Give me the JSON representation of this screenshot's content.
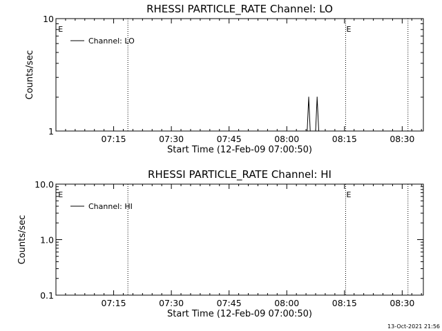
{
  "timestamp": "13-Oct-2021 21:56",
  "chart_data": [
    {
      "type": "line",
      "title": "RHESSI PARTICLE_RATE Channel: LO",
      "xlabel": "Start Time (12-Feb-09 07:00:50)",
      "ylabel": "Counts/sec",
      "y_scale": "log",
      "ylim": [
        1,
        10
      ],
      "y_ticks": [
        {
          "v": 1,
          "label": "1"
        },
        {
          "v": 10,
          "label": "10"
        }
      ],
      "xlim_minutes": [
        0,
        95.5
      ],
      "x_ticks": [
        {
          "m": 15,
          "label": "07:15"
        },
        {
          "m": 30,
          "label": "07:30"
        },
        {
          "m": 45,
          "label": "07:45"
        },
        {
          "m": 60,
          "label": "08:00"
        },
        {
          "m": 75,
          "label": "08:15"
        },
        {
          "m": 90,
          "label": "08:30"
        }
      ],
      "legend": {
        "label": "Channel: LO",
        "position": "top-left"
      },
      "markers": [
        {
          "m": 0.4,
          "label": "E",
          "line": false
        },
        {
          "m": 18.7,
          "label": "",
          "line": true
        },
        {
          "m": 75.3,
          "label": "E",
          "line": true
        },
        {
          "m": 91.5,
          "label": "",
          "line": true
        }
      ],
      "series": [
        {
          "points": [
            [
              65.3,
              1
            ],
            [
              65.7,
              2
            ],
            [
              66.1,
              1
            ]
          ]
        },
        {
          "points": [
            [
              67.5,
              1
            ],
            [
              67.9,
              2
            ],
            [
              68.3,
              1
            ]
          ]
        }
      ]
    },
    {
      "type": "line",
      "title": "RHESSI PARTICLE_RATE Channel: HI",
      "xlabel": "Start Time (12-Feb-09 07:00:50)",
      "ylabel": "Counts/sec",
      "y_scale": "log",
      "ylim": [
        0.1,
        10
      ],
      "y_ticks": [
        {
          "v": 0.1,
          "label": "0.1"
        },
        {
          "v": 1,
          "label": "1.0"
        },
        {
          "v": 10,
          "label": "10.0"
        }
      ],
      "xlim_minutes": [
        0,
        95.5
      ],
      "x_ticks": [
        {
          "m": 15,
          "label": "07:15"
        },
        {
          "m": 30,
          "label": "07:30"
        },
        {
          "m": 45,
          "label": "07:45"
        },
        {
          "m": 60,
          "label": "08:00"
        },
        {
          "m": 75,
          "label": "08:15"
        },
        {
          "m": 90,
          "label": "08:30"
        }
      ],
      "legend": {
        "label": "Channel: HI",
        "position": "top-left"
      },
      "markers": [
        {
          "m": 0.4,
          "label": "E",
          "line": false
        },
        {
          "m": 18.7,
          "label": "",
          "line": true
        },
        {
          "m": 75.3,
          "label": "E",
          "line": true
        },
        {
          "m": 91.5,
          "label": "",
          "line": true
        }
      ],
      "series": []
    }
  ]
}
